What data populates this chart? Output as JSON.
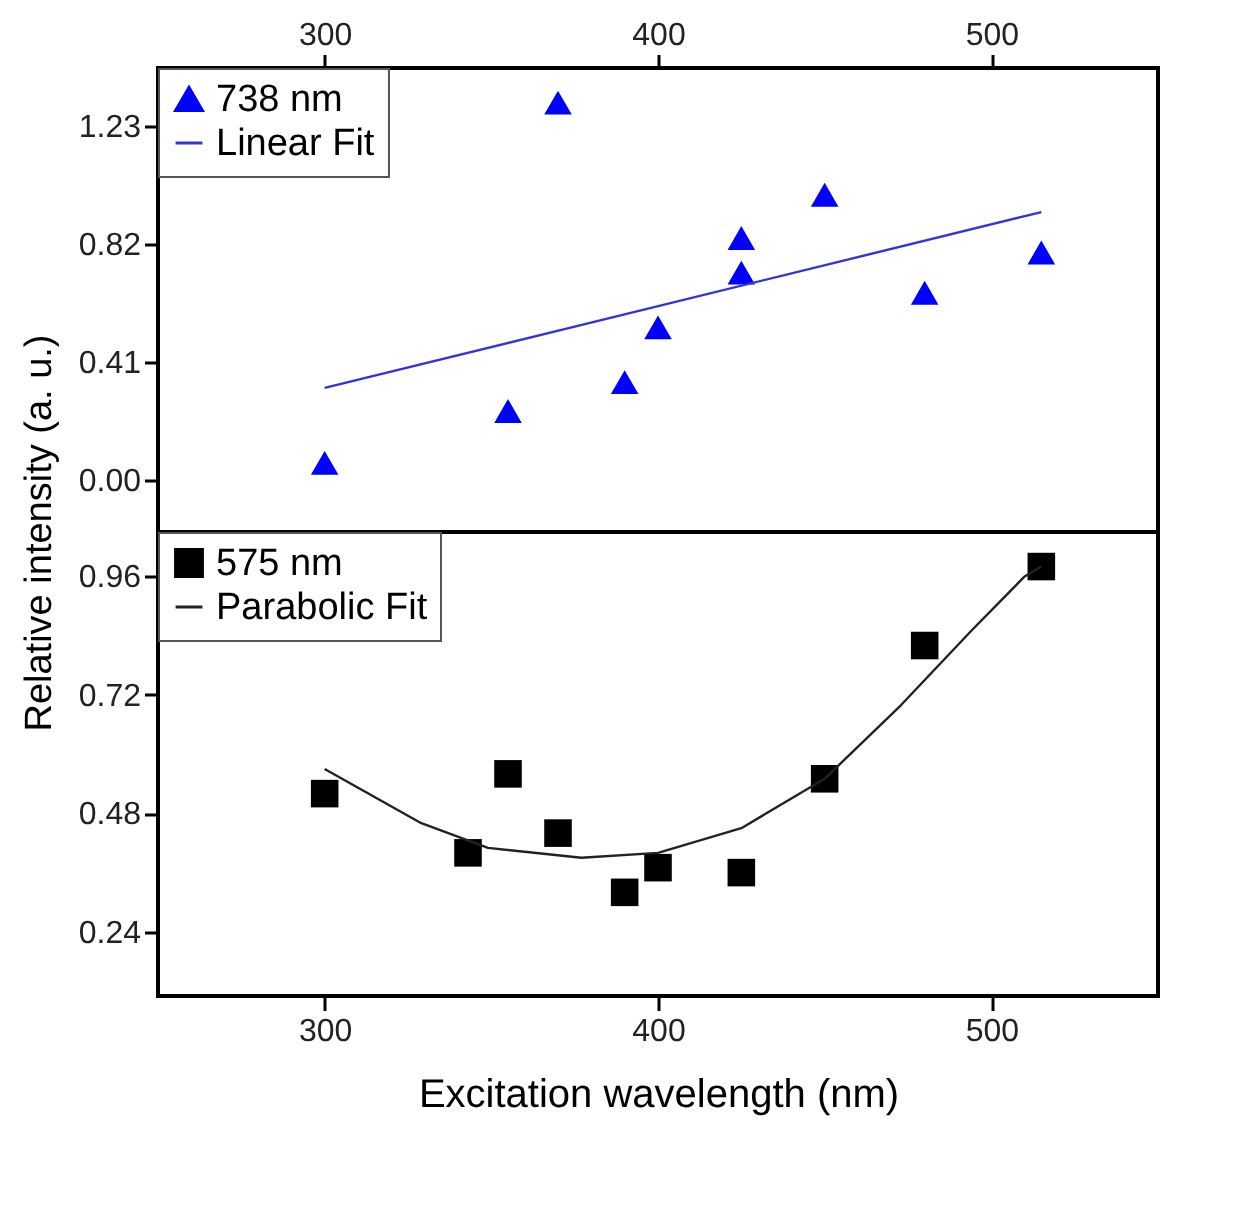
{
  "chart_data": [
    {
      "type": "scatter",
      "ylabel": "Relative intensity (a. u.)",
      "xlim": [
        250,
        550
      ],
      "xticks": [
        300,
        400,
        500
      ],
      "ylim": [
        -0.18,
        1.43
      ],
      "yticks": [
        {
          "value": 0,
          "label": "0.00"
        },
        0.41,
        0.82,
        1.23
      ],
      "legend": "top left",
      "series": [
        {
          "name": "738 nm",
          "type": "scatter",
          "marker": "triangle",
          "color": "#0000ff",
          "x": [
            300,
            355,
            370,
            390,
            400,
            425,
            425,
            450,
            480,
            515
          ],
          "values": [
            0.06,
            0.24,
            1.31,
            0.34,
            0.53,
            0.84,
            0.72,
            0.99,
            0.65,
            0.79
          ]
        },
        {
          "name": "Linear Fit",
          "type": "line",
          "marker": "none",
          "line_style": "solid",
          "color": "#3333dd",
          "x": [
            300,
            515
          ],
          "values": [
            0.32,
            0.93
          ]
        }
      ]
    },
    {
      "type": "scatter",
      "xlabel": "Excitation wavelength (nm)",
      "xlim": [
        250,
        550
      ],
      "xticks": [
        300,
        400,
        500
      ],
      "ylim": [
        0.11,
        1.05
      ],
      "yticks": [
        0.24,
        0.48,
        0.72,
        0.96
      ],
      "legend": "top left",
      "series": [
        {
          "name": "575 nm",
          "type": "scatter",
          "marker": "square",
          "color": "#000000",
          "x": [
            300,
            343,
            355,
            370,
            390,
            400,
            425,
            450,
            480,
            515
          ],
          "values": [
            0.52,
            0.4,
            0.56,
            0.44,
            0.32,
            0.37,
            0.36,
            0.55,
            0.82,
            0.98
          ]
        },
        {
          "name": "Parabolic Fit",
          "type": "line",
          "marker": "none",
          "line_style": "solid",
          "color": "#222222",
          "x": [
            300,
            329,
            349,
            377,
            400,
            425,
            450,
            473,
            494,
            510,
            515
          ],
          "values": [
            0.57,
            0.46,
            0.41,
            0.39,
            0.4,
            0.45,
            0.55,
            0.7,
            0.85,
            0.96,
            0.98
          ]
        }
      ]
    }
  ]
}
